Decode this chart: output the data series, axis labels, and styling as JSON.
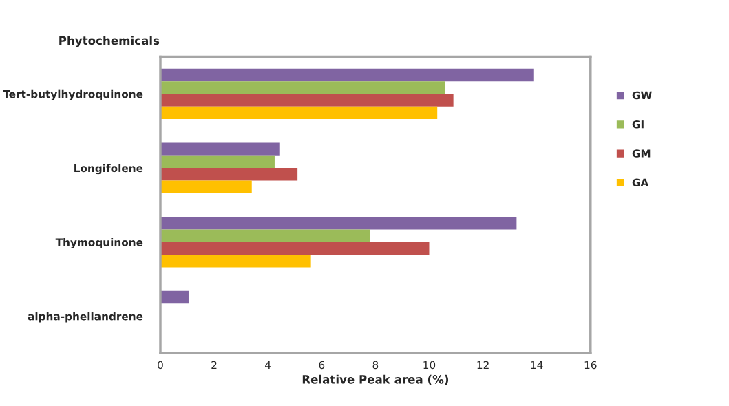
{
  "chart_data": {
    "type": "bar",
    "orientation": "horizontal",
    "ylabel": "Phytochemicals",
    "xlabel": "Relative Peak area (%)",
    "categories": [
      "Tert-butylhydroquinone",
      "Longifolene",
      "Thymoquinone",
      "alpha-phellandrene"
    ],
    "series": [
      {
        "name": "GW",
        "color": "#8064a2",
        "values": [
          13.9,
          4.45,
          13.25,
          1.05
        ]
      },
      {
        "name": "GI",
        "color": "#9bbb59",
        "values": [
          10.6,
          4.25,
          7.8,
          null
        ]
      },
      {
        "name": "GM",
        "color": "#c0504d",
        "values": [
          10.9,
          5.1,
          10.0,
          null
        ]
      },
      {
        "name": "GA",
        "color": "#ffc000",
        "values": [
          10.3,
          3.4,
          5.6,
          null
        ]
      }
    ],
    "xlim": [
      0,
      16
    ],
    "xticks": [
      0,
      2,
      4,
      6,
      8,
      10,
      12,
      14,
      16
    ],
    "grid": false,
    "legend": "right"
  }
}
